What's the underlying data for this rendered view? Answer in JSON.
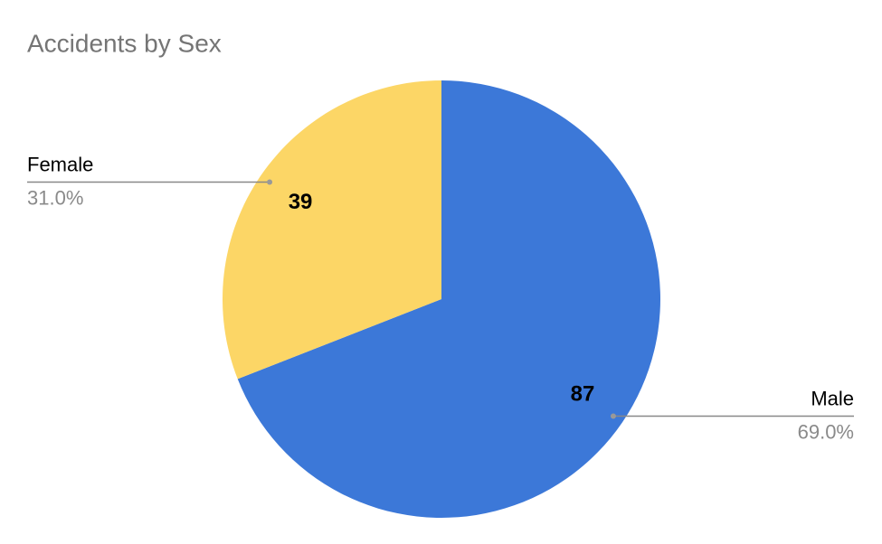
{
  "chart_data": {
    "type": "pie",
    "title": "Accidents by Sex",
    "categories": [
      "Male",
      "Female"
    ],
    "values": [
      87,
      39
    ],
    "percent_labels": [
      "69.0%",
      "31.0%"
    ],
    "colors": [
      "#3c78d8",
      "#fcd666"
    ]
  }
}
